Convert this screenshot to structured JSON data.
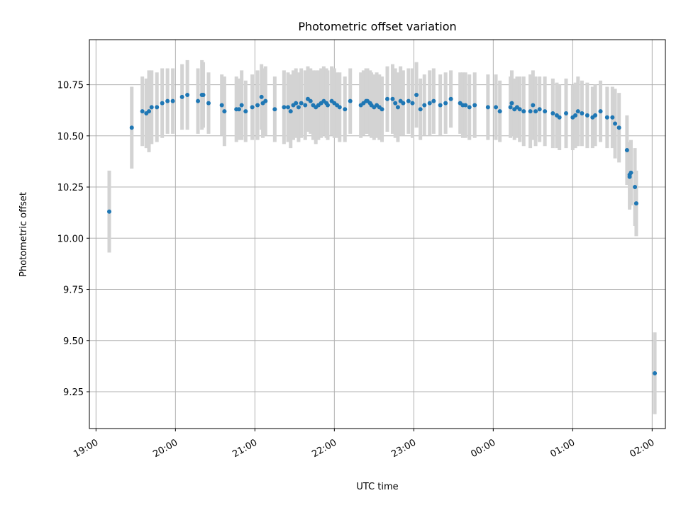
{
  "chart_data": {
    "type": "scatter",
    "title": "Photometric offset variation",
    "xlabel": "UTC time",
    "ylabel": "Photometric offset",
    "x_range": [
      "18:55",
      "02:10"
    ],
    "ylim": [
      9.07,
      10.97
    ],
    "x_ticks": [
      "19:00",
      "20:00",
      "21:00",
      "22:00",
      "23:00",
      "00:00",
      "01:00",
      "02:00"
    ],
    "y_ticks": [
      "9.25",
      "9.50",
      "9.75",
      "10.00",
      "10.25",
      "10.50",
      "10.75"
    ],
    "grid": true,
    "point_color": "#1f77b4",
    "errorbar_color": "#d3d3d3",
    "series": [
      {
        "x": [
          "19:10",
          "19:27",
          "19:35",
          "19:38",
          "19:40",
          "19:42",
          "19:46",
          "19:50",
          "19:54",
          "19:58",
          "20:05",
          "20:09",
          "20:17",
          "20:20",
          "20:21",
          "20:25",
          "20:35",
          "20:37",
          "20:46",
          "20:48",
          "20:50",
          "20:53",
          "20:58",
          "21:02",
          "21:05",
          "21:06",
          "21:08",
          "21:15",
          "21:22",
          "21:25",
          "21:27",
          "21:29",
          "21:31",
          "21:33",
          "21:35",
          "21:38",
          "21:40",
          "21:42",
          "21:44",
          "21:46",
          "21:48",
          "21:50",
          "21:52",
          "21:54",
          "21:55",
          "21:58",
          "22:00",
          "22:02",
          "22:04",
          "22:08",
          "22:12",
          "22:20",
          "22:22",
          "22:24",
          "22:25",
          "22:27",
          "22:28",
          "22:30",
          "22:32",
          "22:34",
          "22:36",
          "22:40",
          "22:44",
          "22:46",
          "22:48",
          "22:50",
          "22:52",
          "22:56",
          "22:59",
          "23:02",
          "23:05",
          "23:08",
          "23:12",
          "23:15",
          "23:20",
          "23:24",
          "23:28",
          "23:35",
          "23:37",
          "23:39",
          "23:42",
          "23:46",
          "23:56",
          "24:02",
          "24:05",
          "24:13",
          "24:14",
          "24:16",
          "24:18",
          "24:20",
          "24:23",
          "24:28",
          "24:30",
          "24:32",
          "24:35",
          "24:39",
          "24:45",
          "24:48",
          "24:50",
          "24:55",
          "25:00",
          "25:02",
          "25:04",
          "25:07",
          "25:11",
          "25:15",
          "25:17",
          "25:21",
          "25:26",
          "25:30",
          "25:32",
          "25:35",
          "25:41",
          "25:43",
          "25:43",
          "25:44",
          "25:47",
          "25:48"
        ],
        "y": [
          10.13,
          10.54,
          10.62,
          10.61,
          10.62,
          10.64,
          10.64,
          10.66,
          10.67,
          10.67,
          10.69,
          10.7,
          10.67,
          10.7,
          10.7,
          10.66,
          10.65,
          10.62,
          10.63,
          10.63,
          10.65,
          10.62,
          10.64,
          10.65,
          10.69,
          10.66,
          10.67,
          10.63,
          10.64,
          10.64,
          10.62,
          10.65,
          10.66,
          10.64,
          10.66,
          10.65,
          10.68,
          10.67,
          10.65,
          10.64,
          10.65,
          10.66,
          10.67,
          10.66,
          10.65,
          10.67,
          10.66,
          10.65,
          10.64,
          10.63,
          10.67,
          10.65,
          10.66,
          10.67,
          10.67,
          10.66,
          10.65,
          10.64,
          10.65,
          10.64,
          10.63,
          10.68,
          10.68,
          10.66,
          10.64,
          10.67,
          10.66,
          10.67,
          10.66,
          10.7,
          10.63,
          10.65,
          10.66,
          10.67,
          10.65,
          10.66,
          10.68,
          10.66,
          10.65,
          10.65,
          10.64,
          10.65,
          10.64,
          10.64,
          10.62,
          10.64,
          10.66,
          10.63,
          10.64,
          10.63,
          10.62,
          10.62,
          10.65,
          10.62,
          10.63,
          10.62,
          10.61,
          10.6,
          10.59,
          10.61,
          10.59,
          10.6,
          10.62,
          10.61,
          10.6,
          10.59,
          10.6,
          10.62,
          10.59,
          10.59,
          10.56,
          10.54,
          10.43,
          10.31,
          10.3,
          10.32,
          10.25,
          10.17
        ],
        "err": [
          0.2,
          0.2,
          0.17,
          0.17,
          0.2,
          0.18,
          0.17,
          0.17,
          0.16,
          0.16,
          0.16,
          0.17,
          0.16,
          0.17,
          0.16,
          0.15,
          0.15,
          0.17,
          0.16,
          0.15,
          0.17,
          0.15,
          0.16,
          0.17,
          0.16,
          0.17,
          0.17,
          0.16,
          0.18,
          0.17,
          0.18,
          0.17,
          0.17,
          0.17,
          0.17,
          0.17,
          0.16,
          0.16,
          0.17,
          0.18,
          0.17,
          0.17,
          0.17,
          0.17,
          0.17,
          0.17,
          0.17,
          0.16,
          0.17,
          0.16,
          0.16,
          0.16,
          0.16,
          0.16,
          0.16,
          0.16,
          0.16,
          0.16,
          0.16,
          0.16,
          0.16,
          0.16,
          0.17,
          0.17,
          0.17,
          0.17,
          0.16,
          0.16,
          0.17,
          0.16,
          0.15,
          0.15,
          0.16,
          0.16,
          0.15,
          0.15,
          0.14,
          0.15,
          0.16,
          0.16,
          0.16,
          0.16,
          0.16,
          0.16,
          0.15,
          0.15,
          0.16,
          0.15,
          0.15,
          0.16,
          0.17,
          0.18,
          0.17,
          0.17,
          0.16,
          0.17,
          0.17,
          0.16,
          0.16,
          0.17,
          0.16,
          0.16,
          0.17,
          0.16,
          0.16,
          0.15,
          0.15,
          0.15,
          0.15,
          0.15,
          0.17,
          0.17,
          0.17,
          0.16,
          0.16,
          0.16,
          0.19,
          0.16
        ]
      },
      {
        "x": [
          "26:02"
        ],
        "y": [
          9.34
        ],
        "err": [
          0.2
        ]
      }
    ]
  }
}
